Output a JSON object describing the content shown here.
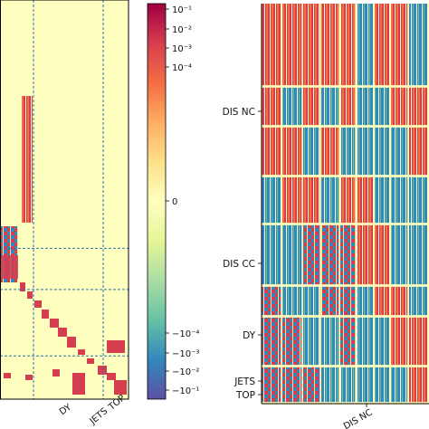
{
  "chart_data": [
    {
      "type": "heatmap",
      "panel": "left",
      "scale": "symlog",
      "title": "",
      "xlabel": "",
      "ylabel": "",
      "x_tick_labels": [
        "DY",
        "JETS",
        "TOP"
      ],
      "block_separators_fraction": [
        0.0,
        0.635,
        0.74,
        0.91
      ],
      "colorbar": {
        "tick_labels": [
          "10⁻¹",
          "10⁻²",
          "10⁻³",
          "10⁻⁴",
          "0",
          "−10⁻⁴",
          "−10⁻³",
          "−10⁻²",
          "−10⁻¹"
        ],
        "tick_values": [
          0.1,
          0.01,
          0.001,
          0.0001,
          0,
          -0.0001,
          -0.001,
          -0.01,
          -0.1
        ],
        "colormap": "Spectral_r",
        "vmin": -0.2,
        "vmax": 0.2
      }
    },
    {
      "type": "heatmap",
      "panel": "right",
      "title": "",
      "y_tick_labels": [
        "DIS NC",
        "DIS CC",
        "DY",
        "JETS",
        "TOP"
      ],
      "x_tick_labels": [
        "DIS NC"
      ],
      "dominant_colors": [
        "#d53e4f",
        "#3288bd",
        "#fee08b",
        "#ffffbf"
      ]
    }
  ]
}
